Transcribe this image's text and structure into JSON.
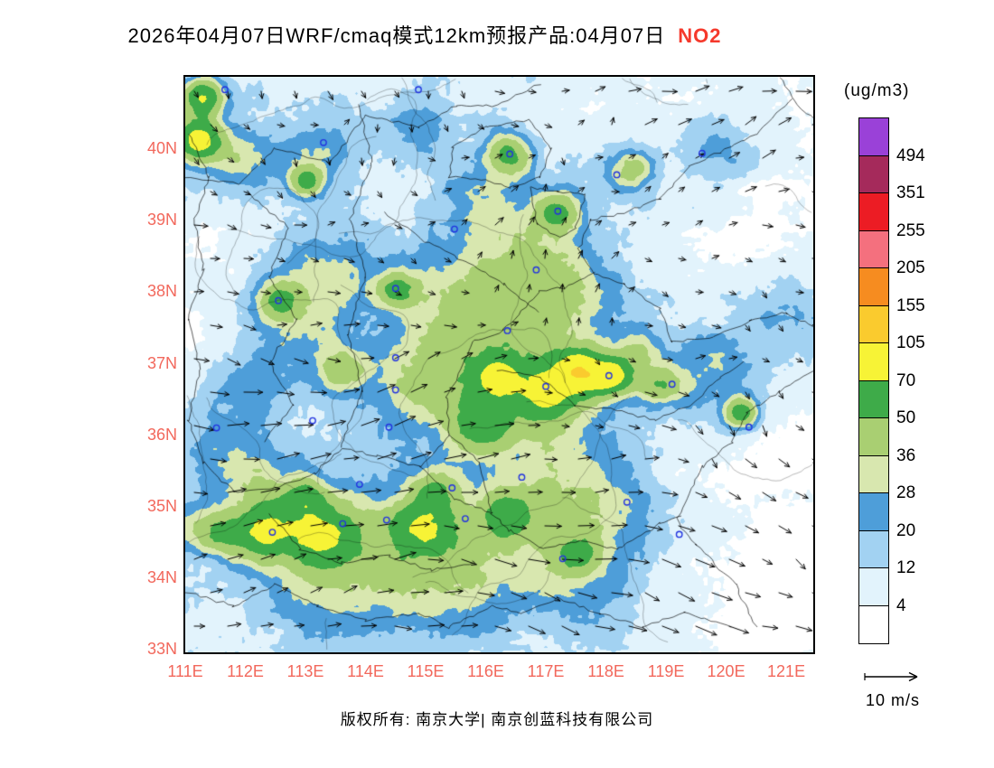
{
  "title": {
    "text": "2026年04月07日WRF/cmaq模式12km预报产品:04月07日",
    "species": "NO2",
    "species_color": "#F5392C"
  },
  "footer": {
    "text": "版权所有: 南京大学| 南京创蓝科技有限公司"
  },
  "wind_legend": {
    "label": "10 m/s"
  },
  "legend": {
    "unit": "(ug/m3)",
    "levels": [
      4,
      12,
      20,
      28,
      36,
      50,
      70,
      105,
      155,
      205,
      255,
      351,
      494
    ],
    "colors": [
      "#FFFFFF",
      "#E2F3FC",
      "#A2D2F2",
      "#4E9ED9",
      "#D8E7AF",
      "#A9CF72",
      "#3EAB49",
      "#F7F336",
      "#FACB2E",
      "#F68C20",
      "#F4707E",
      "#EC1C24",
      "#A52A5B",
      "#9A41D8"
    ]
  },
  "axes": {
    "color": "#F2685C",
    "lat_ticks": [
      {
        "label": "40N",
        "value": 40
      },
      {
        "label": "39N",
        "value": 39
      },
      {
        "label": "38N",
        "value": 38
      },
      {
        "label": "37N",
        "value": 37
      },
      {
        "label": "36N",
        "value": 36
      },
      {
        "label": "35N",
        "value": 35
      },
      {
        "label": "34N",
        "value": 34
      },
      {
        "label": "33N",
        "value": 33
      }
    ],
    "lon_ticks": [
      {
        "label": "111E",
        "value": 111
      },
      {
        "label": "112E",
        "value": 112
      },
      {
        "label": "113E",
        "value": 113
      },
      {
        "label": "114E",
        "value": 114
      },
      {
        "label": "115E",
        "value": 115
      },
      {
        "label": "116E",
        "value": 116
      },
      {
        "label": "117E",
        "value": 117
      },
      {
        "label": "118E",
        "value": 118
      },
      {
        "label": "119E",
        "value": 119
      },
      {
        "label": "120E",
        "value": 120
      },
      {
        "label": "121E",
        "value": 121
      }
    ]
  },
  "chart_data": {
    "type": "heatmap",
    "description": "NO2 surface concentration filled contours (ug/m3) with wind vector overlay, 12km WRF/CMAQ forecast",
    "lon_range": [
      111.0,
      121.45
    ],
    "lat_range": [
      32.95,
      41.0
    ],
    "base_level": 9.5,
    "hotspots": [
      [
        111.2,
        40.12,
        72,
        0.38
      ],
      [
        111.28,
        40.72,
        62,
        0.35
      ],
      [
        117.58,
        36.88,
        68,
        0.4
      ],
      [
        118.12,
        36.82,
        60,
        0.34
      ],
      [
        120.25,
        36.3,
        55,
        0.3
      ],
      [
        116.2,
        36.78,
        46,
        0.3
      ],
      [
        113.0,
        39.55,
        40,
        0.3
      ],
      [
        116.38,
        39.93,
        42,
        0.4
      ],
      [
        114.52,
        38.05,
        38,
        0.35
      ],
      [
        112.56,
        37.88,
        36,
        0.35
      ],
      [
        117.2,
        39.12,
        38,
        0.4
      ],
      [
        118.4,
        39.7,
        34,
        0.4
      ],
      [
        112.3,
        34.62,
        40,
        0.45
      ],
      [
        113.25,
        34.62,
        40,
        0.5
      ],
      [
        114.95,
        34.72,
        38,
        0.5
      ],
      [
        116.35,
        34.85,
        30,
        0.4
      ],
      [
        117.55,
        34.35,
        30,
        0.4
      ],
      [
        113.62,
        36.9,
        30,
        0.4
      ],
      [
        115.9,
        36.1,
        30,
        0.45
      ],
      [
        117.05,
        36.6,
        36,
        0.45
      ],
      [
        118.85,
        36.7,
        30,
        0.35
      ],
      [
        115.15,
        35.25,
        28,
        0.4
      ],
      [
        113.0,
        35.15,
        26,
        0.35
      ],
      [
        111.6,
        34.62,
        30,
        0.4
      ],
      [
        118.55,
        37.2,
        26,
        0.35
      ],
      [
        116.6,
        37.2,
        24,
        1.3
      ],
      [
        115.6,
        37.9,
        20,
        1.1
      ],
      [
        116.9,
        36.4,
        22,
        1.0
      ],
      [
        115.6,
        36.5,
        18,
        1.0
      ],
      [
        114.7,
        36.8,
        18,
        0.9
      ],
      [
        113.4,
        38.25,
        20,
        0.8
      ],
      [
        112.8,
        37.5,
        18,
        0.9
      ],
      [
        113.8,
        34.6,
        22,
        1.1
      ],
      [
        112.5,
        34.7,
        20,
        0.9
      ],
      [
        115.6,
        34.7,
        20,
        1.0
      ],
      [
        116.8,
        34.9,
        18,
        0.9
      ],
      [
        114.5,
        33.9,
        16,
        1.1
      ],
      [
        115.8,
        33.8,
        14,
        1.0
      ],
      [
        113.1,
        33.8,
        14,
        0.9
      ],
      [
        117.6,
        35.3,
        16,
        0.9
      ],
      [
        118.3,
        34.7,
        14,
        0.8
      ],
      [
        111.9,
        39.9,
        24,
        0.6
      ],
      [
        113.2,
        39.9,
        18,
        0.6
      ],
      [
        114.9,
        40.3,
        14,
        0.6
      ],
      [
        115.9,
        39.3,
        16,
        0.8
      ],
      [
        116.7,
        38.6,
        18,
        0.9
      ],
      [
        117.5,
        38.0,
        18,
        0.8
      ],
      [
        119.3,
        36.75,
        16,
        0.7
      ],
      [
        120.0,
        37.1,
        12,
        0.6
      ],
      [
        112.0,
        36.6,
        14,
        0.7
      ],
      [
        111.5,
        35.8,
        14,
        0.7
      ],
      [
        112.2,
        35.3,
        16,
        0.7
      ],
      [
        110.9,
        34.7,
        18,
        0.6
      ],
      [
        117.1,
        34.0,
        12,
        0.8
      ],
      [
        118.0,
        33.8,
        10,
        0.8
      ],
      [
        119.9,
        39.95,
        14,
        0.6
      ],
      [
        121.0,
        37.6,
        12,
        0.6
      ],
      [
        121.25,
        34.3,
        -9,
        1.5
      ],
      [
        120.7,
        33.4,
        -8,
        1.2
      ],
      [
        121.35,
        35.9,
        -7,
        0.9
      ],
      [
        120.9,
        39.2,
        -7,
        1.0
      ],
      [
        121.3,
        40.5,
        -6,
        0.9
      ],
      [
        119.9,
        38.55,
        -5,
        0.8
      ],
      [
        111.35,
        38.6,
        -6,
        0.9
      ],
      [
        111.1,
        37.4,
        -5,
        1.0
      ],
      [
        117.7,
        40.75,
        -5,
        0.8
      ],
      [
        119.3,
        40.9,
        -4,
        0.7
      ],
      [
        114.8,
        39.4,
        -4,
        0.6
      ],
      [
        118.7,
        34.05,
        -4,
        0.8
      ],
      [
        119.8,
        35.6,
        -5,
        0.9
      ]
    ],
    "cities": [
      [
        111.66,
        40.82
      ],
      [
        113.3,
        40.08
      ],
      [
        114.88,
        40.82
      ],
      [
        116.4,
        39.92
      ],
      [
        117.2,
        39.12
      ],
      [
        118.18,
        39.63
      ],
      [
        119.6,
        39.93
      ],
      [
        112.55,
        37.87
      ],
      [
        114.5,
        38.04
      ],
      [
        115.48,
        38.87
      ],
      [
        116.84,
        38.3
      ],
      [
        116.36,
        37.45
      ],
      [
        117.0,
        36.67
      ],
      [
        118.05,
        36.82
      ],
      [
        119.1,
        36.7
      ],
      [
        120.38,
        36.1
      ],
      [
        114.5,
        36.62
      ],
      [
        114.39,
        36.1
      ],
      [
        113.9,
        35.3
      ],
      [
        113.62,
        34.75
      ],
      [
        112.45,
        34.63
      ],
      [
        114.35,
        34.8
      ],
      [
        115.66,
        34.82
      ],
      [
        115.44,
        35.25
      ],
      [
        116.6,
        35.4
      ],
      [
        117.28,
        34.26
      ],
      [
        118.35,
        35.05
      ],
      [
        119.22,
        34.6
      ],
      [
        113.12,
        36.19
      ],
      [
        111.52,
        36.09
      ],
      [
        114.5,
        37.07
      ]
    ],
    "boundaries": [
      [
        [
          111.05,
          40.2
        ],
        [
          111.4,
          39.6
        ],
        [
          111.15,
          39.0
        ],
        [
          111.3,
          38.3
        ],
        [
          111.05,
          37.6
        ],
        [
          111.25,
          36.9
        ],
        [
          111.05,
          36.2
        ],
        [
          111.3,
          35.6
        ],
        [
          111.8,
          35.2
        ],
        [
          112.5,
          35.25
        ],
        [
          113.15,
          35.45
        ],
        [
          113.6,
          35.8
        ]
      ],
      [
        [
          113.9,
          40.6
        ],
        [
          114.1,
          39.8
        ],
        [
          113.75,
          39.0
        ],
        [
          114.0,
          38.2
        ],
        [
          113.7,
          37.4
        ],
        [
          113.95,
          36.6
        ],
        [
          113.65,
          36.0
        ],
        [
          113.6,
          35.8
        ]
      ],
      [
        [
          111.0,
          39.6
        ],
        [
          111.9,
          39.5
        ],
        [
          112.5,
          40.0
        ],
        [
          113.4,
          39.8
        ],
        [
          114.0,
          40.45
        ],
        [
          114.9,
          40.3
        ],
        [
          115.5,
          40.6
        ],
        [
          116.2,
          40.6
        ],
        [
          116.9,
          40.9
        ]
      ],
      [
        [
          113.6,
          35.8
        ],
        [
          114.2,
          35.7
        ],
        [
          114.9,
          35.55
        ],
        [
          115.4,
          36.0
        ],
        [
          115.35,
          36.5
        ],
        [
          115.8,
          37.3
        ],
        [
          116.3,
          37.45
        ],
        [
          116.9,
          38.0
        ],
        [
          117.3,
          38.05
        ],
        [
          117.8,
          38.25
        ]
      ],
      [
        [
          114.9,
          35.55
        ],
        [
          115.5,
          35.1
        ],
        [
          116.1,
          34.9
        ],
        [
          116.4,
          34.65
        ],
        [
          116.95,
          34.4
        ],
        [
          117.6,
          34.5
        ],
        [
          118.2,
          34.4
        ],
        [
          118.9,
          34.75
        ],
        [
          119.25,
          34.85
        ]
      ],
      [
        [
          111.0,
          33.8
        ],
        [
          111.8,
          33.6
        ],
        [
          112.5,
          33.9
        ],
        [
          113.2,
          33.6
        ],
        [
          114.0,
          33.4
        ],
        [
          114.9,
          33.5
        ],
        [
          115.4,
          33.3
        ],
        [
          116.1,
          33.6
        ],
        [
          116.6,
          33.5
        ],
        [
          117.2,
          33.7
        ],
        [
          117.9,
          33.5
        ],
        [
          118.6,
          33.3
        ],
        [
          119.3,
          33.5
        ],
        [
          120.1,
          33.3
        ]
      ],
      [
        [
          117.8,
          38.25
        ],
        [
          117.55,
          38.6
        ],
        [
          117.75,
          39.0
        ],
        [
          118.3,
          39.1
        ],
        [
          118.9,
          39.3
        ],
        [
          119.4,
          39.75
        ],
        [
          119.9,
          39.95
        ],
        [
          120.5,
          40.2
        ],
        [
          121.1,
          40.7
        ]
      ],
      [
        [
          117.8,
          38.25
        ],
        [
          118.3,
          38.1
        ],
        [
          118.9,
          37.75
        ],
        [
          119.1,
          37.3
        ],
        [
          119.8,
          37.35
        ],
        [
          120.4,
          37.6
        ],
        [
          121.0,
          37.7
        ],
        [
          121.45,
          37.5
        ]
      ],
      [
        [
          121.45,
          36.9
        ],
        [
          120.9,
          36.6
        ],
        [
          120.35,
          36.3
        ],
        [
          120.1,
          35.9
        ],
        [
          119.6,
          35.55
        ],
        [
          119.35,
          35.1
        ],
        [
          119.2,
          34.85
        ],
        [
          119.25,
          34.7
        ],
        [
          119.5,
          34.45
        ],
        [
          120.15,
          33.9
        ],
        [
          120.5,
          33.3
        ]
      ],
      [
        [
          115.4,
          39.6
        ],
        [
          116.0,
          39.55
        ],
        [
          116.4,
          39.45
        ],
        [
          116.9,
          39.6
        ],
        [
          117.1,
          40.0
        ],
        [
          116.7,
          40.4
        ],
        [
          116.0,
          40.3
        ],
        [
          115.45,
          40.0
        ],
        [
          115.4,
          39.6
        ]
      ],
      [
        [
          116.75,
          39.45
        ],
        [
          117.2,
          39.4
        ],
        [
          117.65,
          39.35
        ],
        [
          117.5,
          38.9
        ],
        [
          117.25,
          38.75
        ],
        [
          116.85,
          38.95
        ],
        [
          116.75,
          39.45
        ]
      ],
      [
        [
          112.0,
          39.4
        ],
        [
          112.7,
          38.9
        ],
        [
          112.4,
          38.2
        ],
        [
          112.85,
          37.6
        ],
        [
          112.4,
          37.0
        ],
        [
          112.8,
          36.4
        ],
        [
          112.3,
          35.9
        ]
      ],
      [
        [
          116.2,
          36.9
        ],
        [
          116.9,
          36.8
        ],
        [
          117.5,
          36.4
        ],
        [
          118.1,
          36.35
        ],
        [
          118.8,
          36.2
        ],
        [
          119.4,
          36.4
        ],
        [
          119.9,
          36.8
        ],
        [
          120.3,
          37.0
        ]
      ],
      [
        [
          112.4,
          34.9
        ],
        [
          112.9,
          34.4
        ],
        [
          113.6,
          34.2
        ],
        [
          114.4,
          34.3
        ],
        [
          115.1,
          34.1
        ],
        [
          115.8,
          34.2
        ]
      ],
      [
        [
          114.3,
          39.1
        ],
        [
          115.0,
          38.7
        ],
        [
          115.7,
          38.4
        ],
        [
          116.3,
          38.1
        ],
        [
          116.9,
          37.7
        ]
      ],
      [
        [
          120.9,
          41.0
        ],
        [
          121.2,
          40.6
        ],
        [
          121.45,
          40.4
        ]
      ],
      [
        [
          115.4,
          36.0
        ],
        [
          115.9,
          35.6
        ],
        [
          116.1,
          34.9
        ]
      ]
    ],
    "wind": {
      "reference_speed_ms": 10
    }
  }
}
